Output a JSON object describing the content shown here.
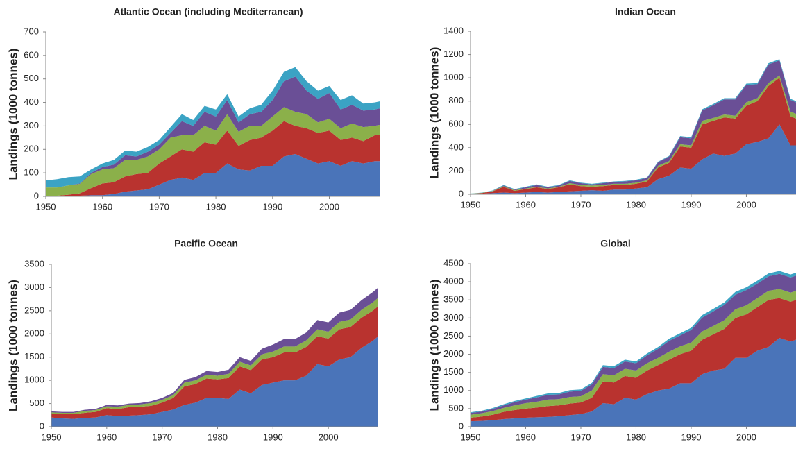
{
  "chart_data": [
    {
      "type": "area",
      "stacked": true,
      "title": "Atlantic Ocean (including Mediterranean)",
      "y_label": "Landings (1000 tonnes)",
      "x": [
        1950,
        1952,
        1954,
        1956,
        1958,
        1960,
        1962,
        1964,
        1966,
        1968,
        1970,
        1972,
        1974,
        1976,
        1978,
        1980,
        1982,
        1984,
        1986,
        1988,
        1990,
        1992,
        1994,
        1996,
        1998,
        2000,
        2002,
        2004,
        2006,
        2008,
        2009
      ],
      "xlim": [
        1950,
        2009
      ],
      "xticks": [
        1950,
        1960,
        1970,
        1980,
        1990,
        2000
      ],
      "ylim": [
        0,
        700
      ],
      "yticks": [
        0,
        100,
        200,
        300,
        400,
        500,
        600,
        700
      ],
      "series": [
        {
          "color": "#4a74b9",
          "values": [
            0,
            0,
            2,
            3,
            5,
            5,
            10,
            20,
            25,
            30,
            50,
            70,
            80,
            70,
            100,
            100,
            140,
            115,
            110,
            130,
            130,
            170,
            180,
            160,
            140,
            150,
            130,
            150,
            140,
            150,
            150
          ]
        },
        {
          "color": "#b9332f",
          "values": [
            3,
            3,
            5,
            10,
            30,
            50,
            50,
            65,
            70,
            70,
            90,
            100,
            120,
            120,
            130,
            120,
            140,
            100,
            130,
            120,
            150,
            150,
            120,
            130,
            130,
            130,
            110,
            100,
            95,
            110,
            110
          ]
        },
        {
          "color": "#8bb04a",
          "values": [
            35,
            35,
            40,
            40,
            60,
            60,
            60,
            70,
            60,
            70,
            60,
            80,
            60,
            70,
            70,
            60,
            70,
            60,
            60,
            50,
            60,
            60,
            60,
            60,
            45,
            50,
            50,
            60,
            60,
            40,
            45
          ]
        },
        {
          "color": "#6a4f96",
          "values": [
            0,
            0,
            0,
            2,
            5,
            10,
            15,
            20,
            15,
            20,
            20,
            20,
            60,
            40,
            60,
            60,
            60,
            40,
            50,
            60,
            70,
            110,
            150,
            100,
            100,
            110,
            80,
            80,
            70,
            70,
            70
          ]
        },
        {
          "color": "#3ba3c4",
          "values": [
            30,
            35,
            35,
            30,
            15,
            15,
            20,
            20,
            20,
            20,
            20,
            25,
            30,
            25,
            25,
            30,
            25,
            25,
            25,
            30,
            40,
            40,
            40,
            40,
            35,
            30,
            40,
            40,
            30,
            30,
            30
          ]
        }
      ]
    },
    {
      "type": "area",
      "stacked": true,
      "title": "Indian Ocean",
      "y_label": "Landings (1000 tonnes)",
      "x": [
        1950,
        1952,
        1954,
        1956,
        1958,
        1960,
        1962,
        1964,
        1966,
        1968,
        1970,
        1972,
        1974,
        1976,
        1978,
        1980,
        1982,
        1984,
        1986,
        1988,
        1990,
        1992,
        1994,
        1996,
        1998,
        2000,
        2002,
        2004,
        2006,
        2008,
        2009
      ],
      "xlim": [
        1950,
        2009
      ],
      "xticks": [
        1950,
        1960,
        1970,
        1980,
        1990,
        2000
      ],
      "ylim": [
        0,
        1400
      ],
      "yticks": [
        0,
        200,
        400,
        600,
        800,
        1000,
        1200,
        1400
      ],
      "series": [
        {
          "color": "#4a74b9",
          "values": [
            2,
            5,
            10,
            15,
            10,
            15,
            20,
            15,
            20,
            25,
            30,
            35,
            30,
            40,
            40,
            50,
            60,
            130,
            160,
            230,
            220,
            300,
            350,
            330,
            350,
            430,
            450,
            480,
            600,
            420,
            420
          ]
        },
        {
          "color": "#b9332f",
          "values": [
            3,
            5,
            15,
            50,
            20,
            30,
            40,
            30,
            40,
            60,
            40,
            30,
            40,
            40,
            40,
            40,
            50,
            100,
            110,
            180,
            180,
            300,
            280,
            330,
            300,
            330,
            350,
            450,
            400,
            250,
            230
          ]
        },
        {
          "color": "#8bb04a",
          "values": [
            1,
            2,
            3,
            5,
            5,
            5,
            5,
            5,
            5,
            10,
            10,
            10,
            10,
            10,
            10,
            10,
            10,
            15,
            15,
            20,
            20,
            30,
            25,
            25,
            25,
            30,
            25,
            25,
            20,
            40,
            40
          ]
        },
        {
          "color": "#6a4f96",
          "values": [
            0,
            0,
            2,
            5,
            5,
            10,
            15,
            10,
            10,
            20,
            15,
            10,
            15,
            15,
            20,
            20,
            20,
            30,
            40,
            60,
            60,
            90,
            110,
            130,
            140,
            150,
            120,
            160,
            130,
            100,
            100
          ]
        },
        {
          "color": "#3ba3c4",
          "values": [
            1,
            2,
            3,
            5,
            5,
            5,
            5,
            5,
            5,
            5,
            5,
            5,
            5,
            5,
            5,
            5,
            5,
            5,
            5,
            10,
            10,
            10,
            10,
            10,
            10,
            10,
            10,
            10,
            10,
            10,
            10
          ]
        }
      ]
    },
    {
      "type": "area",
      "stacked": true,
      "title": "Pacific Ocean",
      "y_label": "Landings (1000 tonnes)",
      "x": [
        1950,
        1952,
        1954,
        1956,
        1958,
        1960,
        1962,
        1964,
        1966,
        1968,
        1970,
        1972,
        1974,
        1976,
        1978,
        1980,
        1982,
        1984,
        1986,
        1988,
        1990,
        1992,
        1994,
        1996,
        1998,
        2000,
        2002,
        2004,
        2006,
        2008,
        2009
      ],
      "xlim": [
        1950,
        2009
      ],
      "xticks": [
        1950,
        1960,
        1970,
        1980,
        1990,
        2000
      ],
      "ylim": [
        0,
        3500
      ],
      "yticks": [
        0,
        500,
        1000,
        1500,
        2000,
        2500,
        3000,
        3500
      ],
      "series": [
        {
          "color": "#4a74b9",
          "values": [
            200,
            180,
            170,
            190,
            200,
            250,
            230,
            240,
            250,
            270,
            320,
            370,
            470,
            520,
            620,
            620,
            600,
            800,
            720,
            900,
            950,
            1000,
            1000,
            1100,
            1350,
            1300,
            1450,
            1500,
            1700,
            1850,
            1950
          ]
        },
        {
          "color": "#b9332f",
          "values": [
            80,
            90,
            100,
            110,
            120,
            150,
            150,
            180,
            180,
            180,
            200,
            250,
            400,
            400,
            420,
            400,
            450,
            500,
            500,
            550,
            550,
            600,
            600,
            620,
            600,
            600,
            650,
            650,
            650,
            650,
            650
          ]
        },
        {
          "color": "#8bb04a",
          "values": [
            30,
            30,
            30,
            40,
            40,
            40,
            50,
            50,
            50,
            60,
            60,
            60,
            80,
            80,
            80,
            80,
            90,
            100,
            100,
            110,
            120,
            130,
            130,
            140,
            150,
            150,
            160,
            160,
            170,
            180,
            180
          ]
        },
        {
          "color": "#6a4f96",
          "values": [
            20,
            20,
            20,
            25,
            25,
            30,
            30,
            30,
            30,
            40,
            40,
            50,
            60,
            70,
            80,
            80,
            90,
            100,
            100,
            120,
            150,
            160,
            160,
            170,
            200,
            200,
            200,
            210,
            210,
            220,
            220
          ]
        }
      ]
    },
    {
      "type": "area",
      "stacked": true,
      "title": "Global",
      "y_label": "Landings (1000 tonnes)",
      "x": [
        1950,
        1952,
        1954,
        1956,
        1958,
        1960,
        1962,
        1964,
        1966,
        1968,
        1970,
        1972,
        1974,
        1976,
        1978,
        1980,
        1982,
        1984,
        1986,
        1988,
        1990,
        1992,
        1994,
        1996,
        1998,
        2000,
        2002,
        2004,
        2006,
        2008,
        2009
      ],
      "xlim": [
        1950,
        2009
      ],
      "xticks": [
        1950,
        1960,
        1970,
        1980,
        1990,
        2000
      ],
      "ylim": [
        0,
        4500
      ],
      "yticks": [
        0,
        500,
        1000,
        1500,
        2000,
        2500,
        3000,
        3500,
        4000,
        4500
      ],
      "series": [
        {
          "color": "#4a74b9",
          "values": [
            150,
            160,
            180,
            210,
            230,
            250,
            260,
            270,
            290,
            320,
            350,
            420,
            650,
            620,
            800,
            750,
            900,
            1000,
            1050,
            1200,
            1200,
            1450,
            1550,
            1600,
            1900,
            1900,
            2100,
            2200,
            2450,
            2350,
            2400
          ]
        },
        {
          "color": "#b9332f",
          "values": [
            100,
            120,
            150,
            200,
            230,
            250,
            270,
            300,
            300,
            320,
            320,
            380,
            600,
            600,
            600,
            600,
            650,
            700,
            800,
            800,
            900,
            950,
            1000,
            1100,
            1100,
            1200,
            1200,
            1300,
            1100,
            1100,
            1100
          ]
        },
        {
          "color": "#8bb04a",
          "values": [
            80,
            90,
            100,
            110,
            130,
            150,
            160,
            180,
            170,
            180,
            170,
            200,
            200,
            200,
            200,
            200,
            200,
            200,
            220,
            220,
            220,
            230,
            230,
            240,
            240,
            250,
            250,
            250,
            250,
            250,
            250
          ]
        },
        {
          "color": "#6a4f96",
          "values": [
            50,
            50,
            60,
            70,
            90,
            100,
            120,
            130,
            130,
            150,
            150,
            170,
            200,
            200,
            200,
            200,
            220,
            250,
            300,
            300,
            350,
            380,
            400,
            420,
            400,
            420,
            400,
            400,
            420,
            420,
            420
          ]
        },
        {
          "color": "#3ba3c4",
          "values": [
            20,
            20,
            25,
            30,
            30,
            30,
            40,
            40,
            40,
            40,
            40,
            40,
            50,
            50,
            50,
            50,
            50,
            50,
            60,
            60,
            60,
            70,
            70,
            70,
            80,
            80,
            80,
            80,
            80,
            80,
            80
          ]
        }
      ]
    }
  ]
}
